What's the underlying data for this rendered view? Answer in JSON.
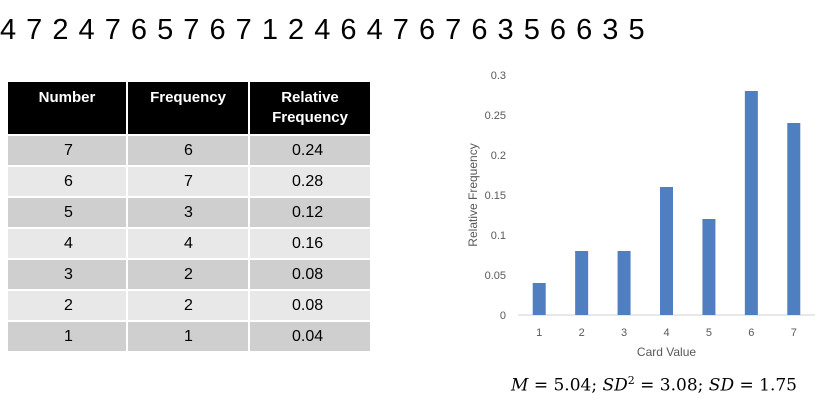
{
  "sequence": "4 7 2 4 7 6 5 7 6 7 1 2 4 6 4 7 6 7 6 3 5 6 6 3 5",
  "table": {
    "headers": [
      "Number",
      "Frequency",
      "Relative",
      "Frequency"
    ],
    "rows": [
      {
        "number": "7",
        "frequency": "6",
        "relative": "0.24"
      },
      {
        "number": "6",
        "frequency": "7",
        "relative": "0.28"
      },
      {
        "number": "5",
        "frequency": "3",
        "relative": "0.12"
      },
      {
        "number": "4",
        "frequency": "4",
        "relative": "0.16"
      },
      {
        "number": "3",
        "frequency": "2",
        "relative": "0.08"
      },
      {
        "number": "2",
        "frequency": "2",
        "relative": "0.08"
      },
      {
        "number": "1",
        "frequency": "1",
        "relative": "0.04"
      }
    ]
  },
  "chart_data": {
    "type": "bar",
    "categories": [
      "1",
      "2",
      "3",
      "4",
      "5",
      "6",
      "7"
    ],
    "values": [
      0.04,
      0.08,
      0.08,
      0.16,
      0.12,
      0.28,
      0.24
    ],
    "yticks": [
      "0",
      "0.05",
      "0.1",
      "0.15",
      "0.2",
      "0.25",
      "0.3"
    ],
    "ylim": [
      0,
      0.3
    ],
    "xlabel": "Card Value",
    "ylabel": "Relative Frequency",
    "bar_color": "#4f7fc0",
    "grid": false
  },
  "stats": {
    "m_label": "M",
    "m_value": "= 5.04;",
    "sd_label": "SD",
    "sd2_sup": "2",
    "sd2_value": "= 3.08;",
    "sd_value": "= 1.75"
  }
}
